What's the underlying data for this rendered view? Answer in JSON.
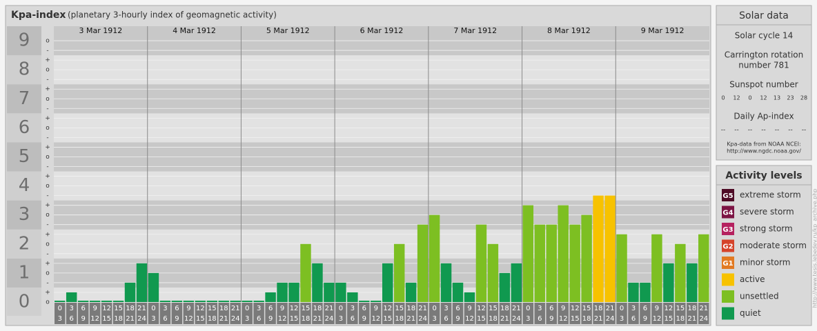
{
  "chart_data": {
    "type": "bar",
    "title": "Kpa-index",
    "subtitle": "(planetary 3-hourly index of geomagnetic activity)",
    "ylim": [
      0,
      9.5
    ],
    "yticks": [
      0,
      1,
      2,
      3,
      4,
      5,
      6,
      7,
      8,
      9
    ],
    "yminor": [
      {
        "value": 0,
        "label": "o"
      },
      {
        "value": 0.333,
        "label": "+"
      },
      {
        "value": 0.667,
        "label": "-"
      },
      {
        "value": 1,
        "label": "o"
      },
      {
        "value": 1.333,
        "label": "+"
      },
      {
        "value": 1.667,
        "label": "-"
      },
      {
        "value": 2,
        "label": "o"
      },
      {
        "value": 2.333,
        "label": "+"
      },
      {
        "value": 2.667,
        "label": "-"
      },
      {
        "value": 3,
        "label": "o"
      },
      {
        "value": 3.333,
        "label": "+"
      },
      {
        "value": 3.667,
        "label": "-"
      },
      {
        "value": 4,
        "label": "o"
      },
      {
        "value": 4.333,
        "label": "+"
      },
      {
        "value": 4.667,
        "label": "-"
      },
      {
        "value": 5,
        "label": "o"
      },
      {
        "value": 5.333,
        "label": "+"
      },
      {
        "value": 5.667,
        "label": "-"
      },
      {
        "value": 6,
        "label": "o"
      },
      {
        "value": 6.333,
        "label": "+"
      },
      {
        "value": 6.667,
        "label": "-"
      },
      {
        "value": 7,
        "label": "o"
      },
      {
        "value": 7.333,
        "label": "+"
      },
      {
        "value": 7.667,
        "label": "-"
      },
      {
        "value": 8,
        "label": "o"
      },
      {
        "value": 8.333,
        "label": "+"
      },
      {
        "value": 8.667,
        "label": "-"
      },
      {
        "value": 9,
        "label": "o"
      }
    ],
    "hours": [
      {
        "from": 0,
        "to": 3
      },
      {
        "from": 3,
        "to": 6
      },
      {
        "from": 6,
        "to": 9
      },
      {
        "from": 9,
        "to": 12
      },
      {
        "from": 12,
        "to": 15
      },
      {
        "from": 15,
        "to": 18
      },
      {
        "from": 18,
        "to": 21
      },
      {
        "from": 21,
        "to": 24
      }
    ],
    "days": [
      {
        "date": "3 Mar 1912",
        "values": [
          0,
          0.333,
          0,
          0,
          0,
          0,
          0.667,
          1.333
        ],
        "colors": [
          "#10994f",
          "#10994f",
          "#10994f",
          "#10994f",
          "#10994f",
          "#10994f",
          "#10994f",
          "#10994f"
        ]
      },
      {
        "date": "4 Mar 1912",
        "values": [
          1,
          0,
          0,
          0,
          0,
          0,
          0,
          0
        ],
        "colors": [
          "#10994f",
          "#10994f",
          "#10994f",
          "#10994f",
          "#10994f",
          "#10994f",
          "#10994f",
          "#10994f"
        ]
      },
      {
        "date": "5 Mar 1912",
        "values": [
          0,
          0,
          0.333,
          0.667,
          0.667,
          2,
          1.333,
          0.667
        ],
        "colors": [
          "#10994f",
          "#10994f",
          "#10994f",
          "#10994f",
          "#10994f",
          "#7dbf22",
          "#10994f",
          "#10994f"
        ]
      },
      {
        "date": "6 Mar 1912",
        "values": [
          0.667,
          0.333,
          0,
          0,
          1.333,
          2,
          0.667,
          2.667
        ],
        "colors": [
          "#10994f",
          "#10994f",
          "#10994f",
          "#10994f",
          "#10994f",
          "#7dbf22",
          "#10994f",
          "#7dbf22"
        ]
      },
      {
        "date": "7 Mar 1912",
        "values": [
          3,
          1.333,
          0.667,
          0.333,
          2.667,
          2,
          1,
          1.333
        ],
        "colors": [
          "#7dbf22",
          "#10994f",
          "#10994f",
          "#10994f",
          "#7dbf22",
          "#7dbf22",
          "#10994f",
          "#10994f"
        ]
      },
      {
        "date": "8 Mar 1912",
        "values": [
          3.333,
          2.667,
          2.667,
          3.333,
          2.667,
          3,
          3.667,
          3.667
        ],
        "colors": [
          "#7dbf22",
          "#7dbf22",
          "#7dbf22",
          "#7dbf22",
          "#7dbf22",
          "#7dbf22",
          "#f7c200",
          "#f7c200"
        ]
      },
      {
        "date": "9 Mar 1912",
        "values": [
          2.333,
          0.667,
          0.667,
          2.333,
          1.333,
          2,
          1.333,
          2.333
        ],
        "colors": [
          "#7dbf22",
          "#10994f",
          "#10994f",
          "#7dbf22",
          "#10994f",
          "#7dbf22",
          "#10994f",
          "#7dbf22"
        ]
      }
    ]
  },
  "solar": {
    "title": "Solar data",
    "cycle": "Solar cycle 14",
    "carrington": [
      "Carrington rotation",
      "number 781"
    ],
    "sunspot_title": "Sunspot number",
    "sunspots": [
      0,
      12,
      0,
      12,
      13,
      23,
      28
    ],
    "ap_title": "Daily Ap-index",
    "ap": [
      "--",
      "--",
      "--",
      "--",
      "--",
      "--",
      "--"
    ],
    "source": [
      "Kpa-data from NOAA NCEI:",
      "http://www.ngdc.noaa.gov/"
    ]
  },
  "levels": {
    "title": "Activity levels",
    "items": [
      {
        "code": "G5",
        "name": "extreme storm",
        "color": "#4e0b26"
      },
      {
        "code": "G4",
        "name": "severe storm",
        "color": "#7c1444"
      },
      {
        "code": "G3",
        "name": "strong storm",
        "color": "#b5215f"
      },
      {
        "code": "G2",
        "name": "moderate storm",
        "color": "#d5432a"
      },
      {
        "code": "G1",
        "name": "minor storm",
        "color": "#e27a22"
      },
      {
        "code": null,
        "name": "active",
        "color": "#f7c200"
      },
      {
        "code": null,
        "name": "unsettled",
        "color": "#7dbf22"
      },
      {
        "code": null,
        "name": "quiet",
        "color": "#10994f"
      }
    ]
  },
  "credit": "http://www.tesis.lebedev.ru/kp_archive.php"
}
